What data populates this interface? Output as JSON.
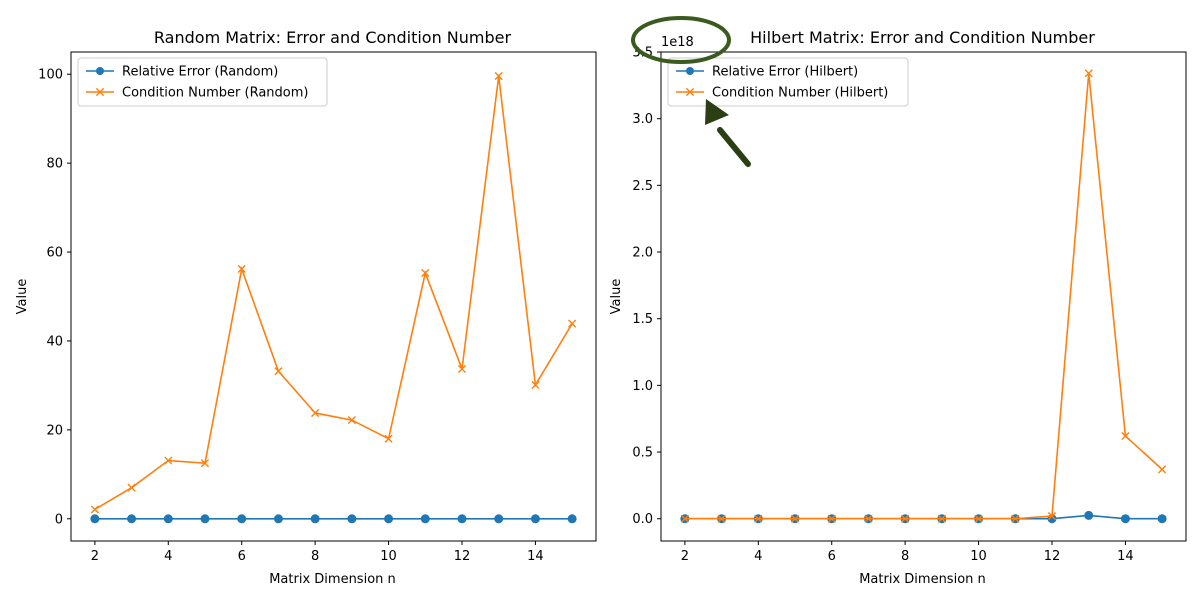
{
  "chart_data": [
    {
      "type": "line",
      "title": "Random Matrix: Error and Condition Number",
      "xlabel": "Matrix Dimension n",
      "ylabel": "Value",
      "xlim": [
        1.35,
        15.65
      ],
      "ylim": [
        -5,
        105
      ],
      "xticks": [
        "2",
        "4",
        "6",
        "8",
        "10",
        "12",
        "14"
      ],
      "yticks": [
        "0",
        "20",
        "40",
        "60",
        "80",
        "100"
      ],
      "offset_text": "",
      "legend_position": "upper-left",
      "x": [
        2,
        3,
        4,
        5,
        6,
        7,
        8,
        9,
        10,
        11,
        12,
        13,
        14,
        15
      ],
      "series": [
        {
          "name": "Relative Error (Random)",
          "color": "#1f77b4",
          "marker": "circle",
          "values": [
            0,
            0,
            0,
            0,
            0,
            0,
            0,
            0,
            0,
            0,
            0,
            0,
            0,
            0
          ]
        },
        {
          "name": "Condition Number (Random)",
          "color": "#ff7f0e",
          "marker": "x",
          "values": [
            2.1,
            7.0,
            13.1,
            12.5,
            56.2,
            33.2,
            23.8,
            22.2,
            18.0,
            55.3,
            33.7,
            99.6,
            30.1,
            43.9
          ]
        }
      ]
    },
    {
      "type": "line",
      "title": "Hilbert Matrix: Error and Condition Number",
      "xlabel": "Matrix Dimension n",
      "ylabel": "Value",
      "xlim": [
        1.35,
        15.65
      ],
      "ylim": [
        -0.167,
        3.5
      ],
      "xticks": [
        "2",
        "4",
        "6",
        "8",
        "10",
        "12",
        "14"
      ],
      "yticks": [
        "0.0",
        "0.5",
        "1.0",
        "1.5",
        "2.0",
        "2.5",
        "3.0",
        "3.5"
      ],
      "offset_text": "1e18",
      "legend_position": "upper-left",
      "x": [
        2,
        3,
        4,
        5,
        6,
        7,
        8,
        9,
        10,
        11,
        12,
        13,
        14,
        15
      ],
      "series": [
        {
          "name": "Relative Error (Hilbert)",
          "color": "#1f77b4",
          "marker": "circle",
          "values": [
            0,
            0,
            0,
            0,
            0,
            0,
            0,
            0,
            0,
            0,
            0,
            0.025,
            0,
            0
          ]
        },
        {
          "name": "Condition Number (Hilbert)",
          "color": "#ff7f0e",
          "marker": "x",
          "values": [
            0,
            0,
            0,
            0,
            0,
            0,
            0,
            0,
            0,
            0,
            0.02,
            3.34,
            0.62,
            0.37
          ]
        }
      ]
    }
  ],
  "annotation": {
    "circle_color": "#3a5a1e",
    "arrow_color": "#2a3f14"
  }
}
